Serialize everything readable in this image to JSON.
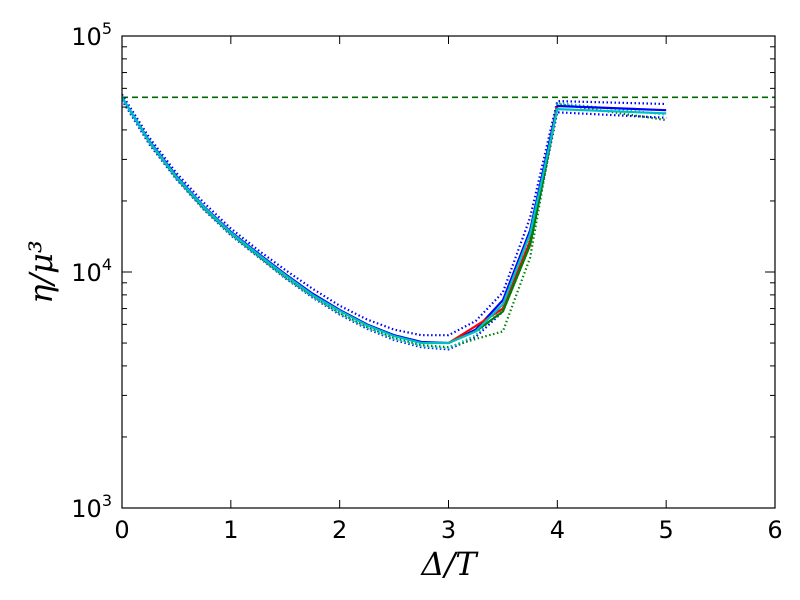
{
  "chart_data": {
    "type": "line",
    "title": "",
    "xlabel": "Δ/T",
    "ylabel": "η/μ³",
    "xlim": [
      0,
      6
    ],
    "ylim": [
      1000,
      100000
    ],
    "y_scale": "log",
    "grid": false,
    "legend": "none",
    "x_ticks": [
      {
        "value": 0,
        "label": "0"
      },
      {
        "value": 1,
        "label": "1"
      },
      {
        "value": 2,
        "label": "2"
      },
      {
        "value": 3,
        "label": "3"
      },
      {
        "value": 4,
        "label": "4"
      },
      {
        "value": 5,
        "label": "5"
      },
      {
        "value": 6,
        "label": "6"
      }
    ],
    "y_ticks": [
      {
        "value": 1000,
        "base": "10",
        "exp": "3"
      },
      {
        "value": 10000,
        "base": "10",
        "exp": "4"
      },
      {
        "value": 100000,
        "base": "10",
        "exp": "5"
      }
    ],
    "series": [
      {
        "color": "#0000ff",
        "style": "solid",
        "x": [
          0,
          0.25,
          0.5,
          0.75,
          1.0,
          1.25,
          1.5,
          1.75,
          2.0,
          2.25,
          2.5,
          2.75,
          3.0,
          3.25,
          3.5,
          3.75,
          4.0,
          5.0
        ],
        "y": [
          55000,
          36000,
          25500,
          19000,
          14800,
          12000,
          9800,
          8100,
          6900,
          6000,
          5400,
          5050,
          5000,
          5700,
          7600,
          15000,
          50500,
          48500
        ]
      },
      {
        "color": "#ff0000",
        "style": "solid",
        "x": [
          3.0,
          3.25,
          3.5,
          3.75,
          4.0
        ],
        "y": [
          5000,
          5900,
          7000,
          13500,
          50000
        ]
      },
      {
        "color": "#008000",
        "style": "solid",
        "x": [
          3.0,
          3.25,
          3.5,
          3.75,
          4.0
        ],
        "y": [
          5000,
          5600,
          6800,
          13000,
          49500
        ]
      },
      {
        "color": "#00bfbf",
        "style": "solid",
        "x": [
          0,
          0.25,
          0.5,
          0.75,
          1.0,
          1.25,
          1.5,
          1.75,
          2.0,
          2.25,
          2.5,
          2.75,
          3.0,
          3.25,
          3.5,
          3.75,
          4.0,
          5.0
        ],
        "y": [
          55000,
          35800,
          25300,
          18900,
          14700,
          11900,
          9700,
          8000,
          6850,
          5950,
          5350,
          5000,
          5000,
          5600,
          7300,
          14500,
          49000,
          47000
        ]
      },
      {
        "color": "#0000ff",
        "style": "dotted",
        "x": [
          0,
          0.25,
          0.5,
          0.75,
          1.0,
          1.25,
          1.5,
          1.75,
          2.0,
          2.25,
          2.5,
          2.75,
          3.0,
          3.25,
          3.5,
          3.75,
          4.0,
          5.0
        ],
        "y": [
          56500,
          37200,
          26300,
          19700,
          15300,
          12400,
          10200,
          8500,
          7200,
          6300,
          5700,
          5400,
          5400,
          6200,
          8200,
          17000,
          53000,
          51500
        ]
      },
      {
        "color": "#0000ff",
        "style": "dotted",
        "x": [
          0,
          0.25,
          0.5,
          0.75,
          1.0,
          1.25,
          1.5,
          1.75,
          2.0,
          2.25,
          2.5,
          2.75,
          3.0,
          3.25,
          3.5,
          3.75,
          4.0,
          5.0
        ],
        "y": [
          53500,
          34800,
          24700,
          18400,
          14300,
          11600,
          9400,
          7800,
          6600,
          5750,
          5150,
          4800,
          4700,
          5300,
          6800,
          13000,
          47500,
          45000
        ]
      },
      {
        "color": "#008000",
        "style": "dotted",
        "x": [
          0,
          0.25,
          0.5,
          0.75,
          1.0,
          1.25,
          1.5,
          1.75,
          2.0,
          2.25,
          2.5,
          2.75,
          3.0,
          3.25,
          3.5,
          3.75,
          4.0,
          5.0
        ],
        "y": [
          55000,
          35500,
          25000,
          18600,
          14500,
          11700,
          9500,
          7900,
          6700,
          5850,
          5250,
          4900,
          4800,
          5200,
          5600,
          11500,
          51500,
          44000
        ]
      },
      {
        "color": "#00bfbf",
        "style": "dotted",
        "x": [
          0,
          0.25,
          0.5,
          0.75,
          1.0,
          1.25,
          1.5,
          1.75,
          2.0,
          2.25,
          2.5,
          2.75,
          3.0,
          3.25,
          3.5,
          3.75,
          4.0,
          5.0
        ],
        "y": [
          54000,
          35200,
          24900,
          18500,
          14400,
          11650,
          9450,
          7850,
          6650,
          5800,
          5200,
          4850,
          4750,
          5400,
          7000,
          14000,
          52000,
          46500
        ]
      }
    ],
    "reference_line": {
      "y": 55000,
      "color": "#006400",
      "style": "dashed"
    }
  }
}
